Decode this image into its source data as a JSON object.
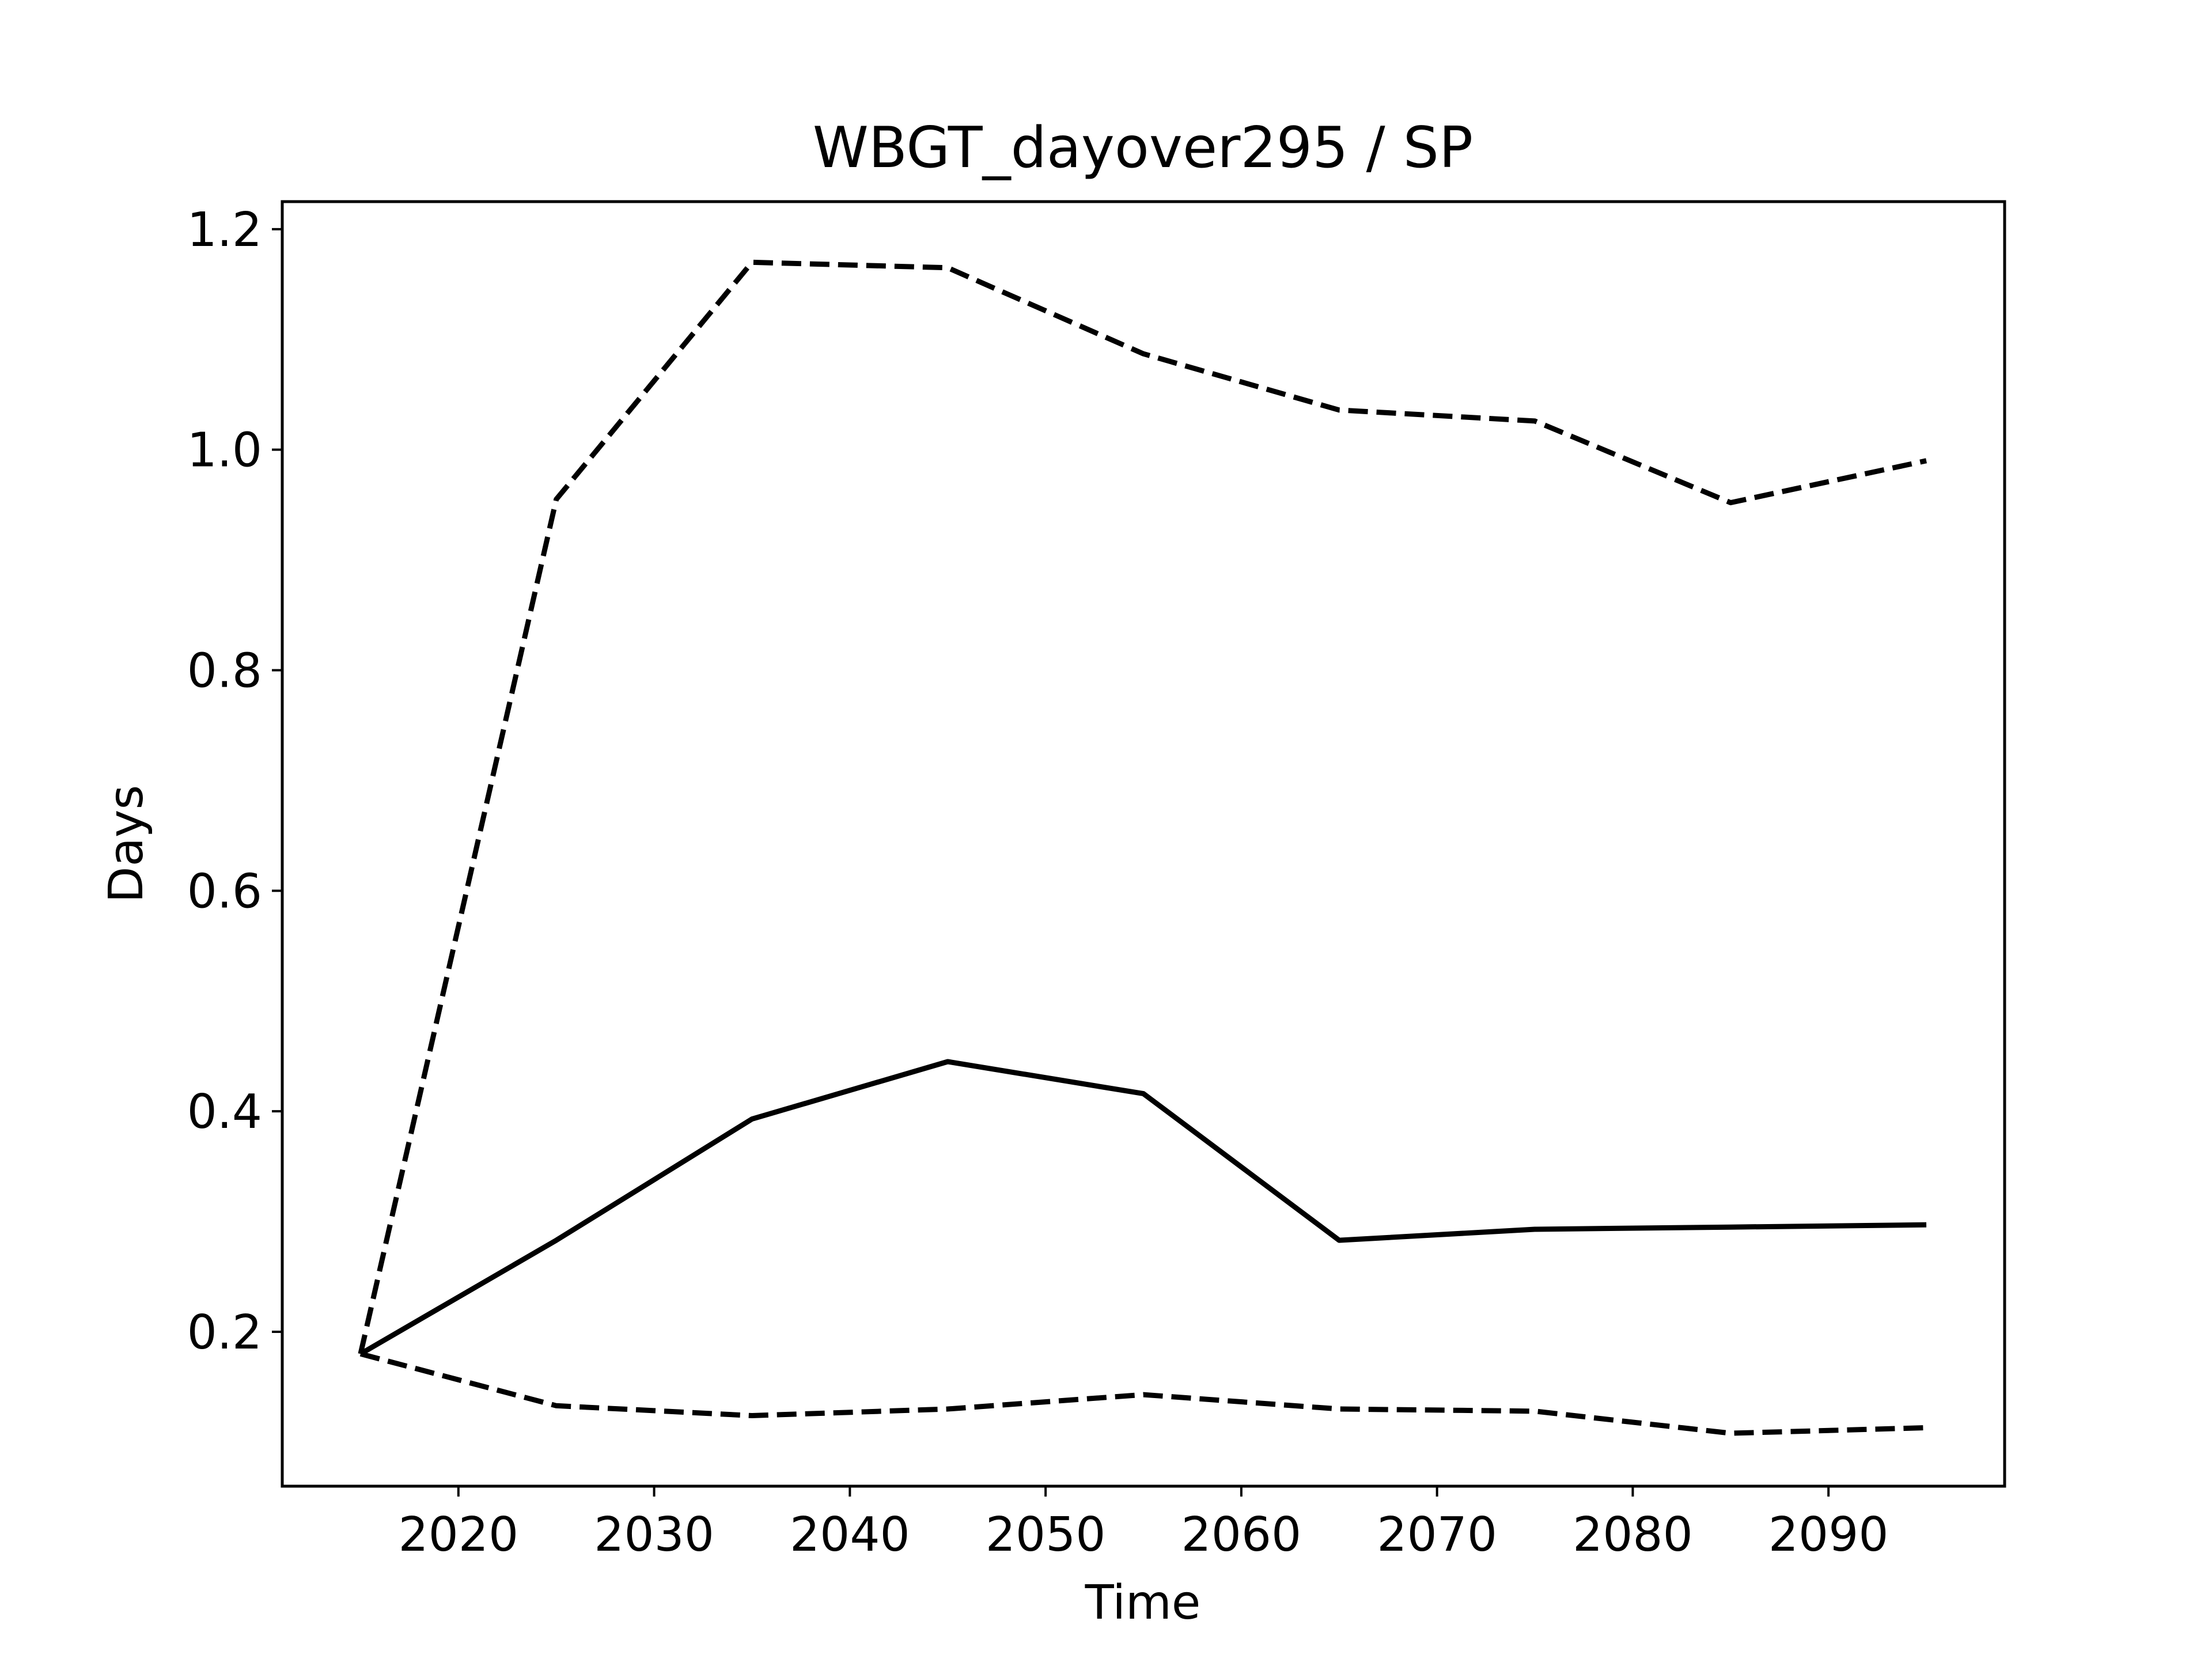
{
  "chart_data": {
    "type": "line",
    "title": "WBGT_dayover295 / SP",
    "xlabel": "Time",
    "ylabel": "Days",
    "xlim": [
      2011,
      2099
    ],
    "ylim": [
      0.06,
      1.225
    ],
    "x_ticks": [
      2020,
      2030,
      2040,
      2050,
      2060,
      2070,
      2080,
      2090
    ],
    "y_ticks": [
      0.2,
      0.4,
      0.6,
      0.8,
      1.0,
      1.2
    ],
    "y_tick_labels": [
      "0.2",
      "0.4",
      "0.6",
      "0.8",
      "1.0",
      "1.2"
    ],
    "grid": false,
    "legend": "none",
    "x": [
      2015,
      2025,
      2035,
      2045,
      2055,
      2065,
      2075,
      2085,
      2095
    ],
    "series": [
      {
        "style": "dashed",
        "color": "#000000",
        "values": [
          0.18,
          0.955,
          1.17,
          1.165,
          1.087,
          1.036,
          1.026,
          0.952,
          0.99
        ]
      },
      {
        "style": "solid",
        "color": "#000000",
        "values": [
          0.18,
          0.283,
          0.393,
          0.445,
          0.416,
          0.283,
          0.293,
          0.295,
          0.297
        ]
      },
      {
        "style": "dashed",
        "color": "#000000",
        "values": [
          0.18,
          0.133,
          0.124,
          0.13,
          0.143,
          0.13,
          0.128,
          0.108,
          0.113
        ]
      }
    ]
  }
}
